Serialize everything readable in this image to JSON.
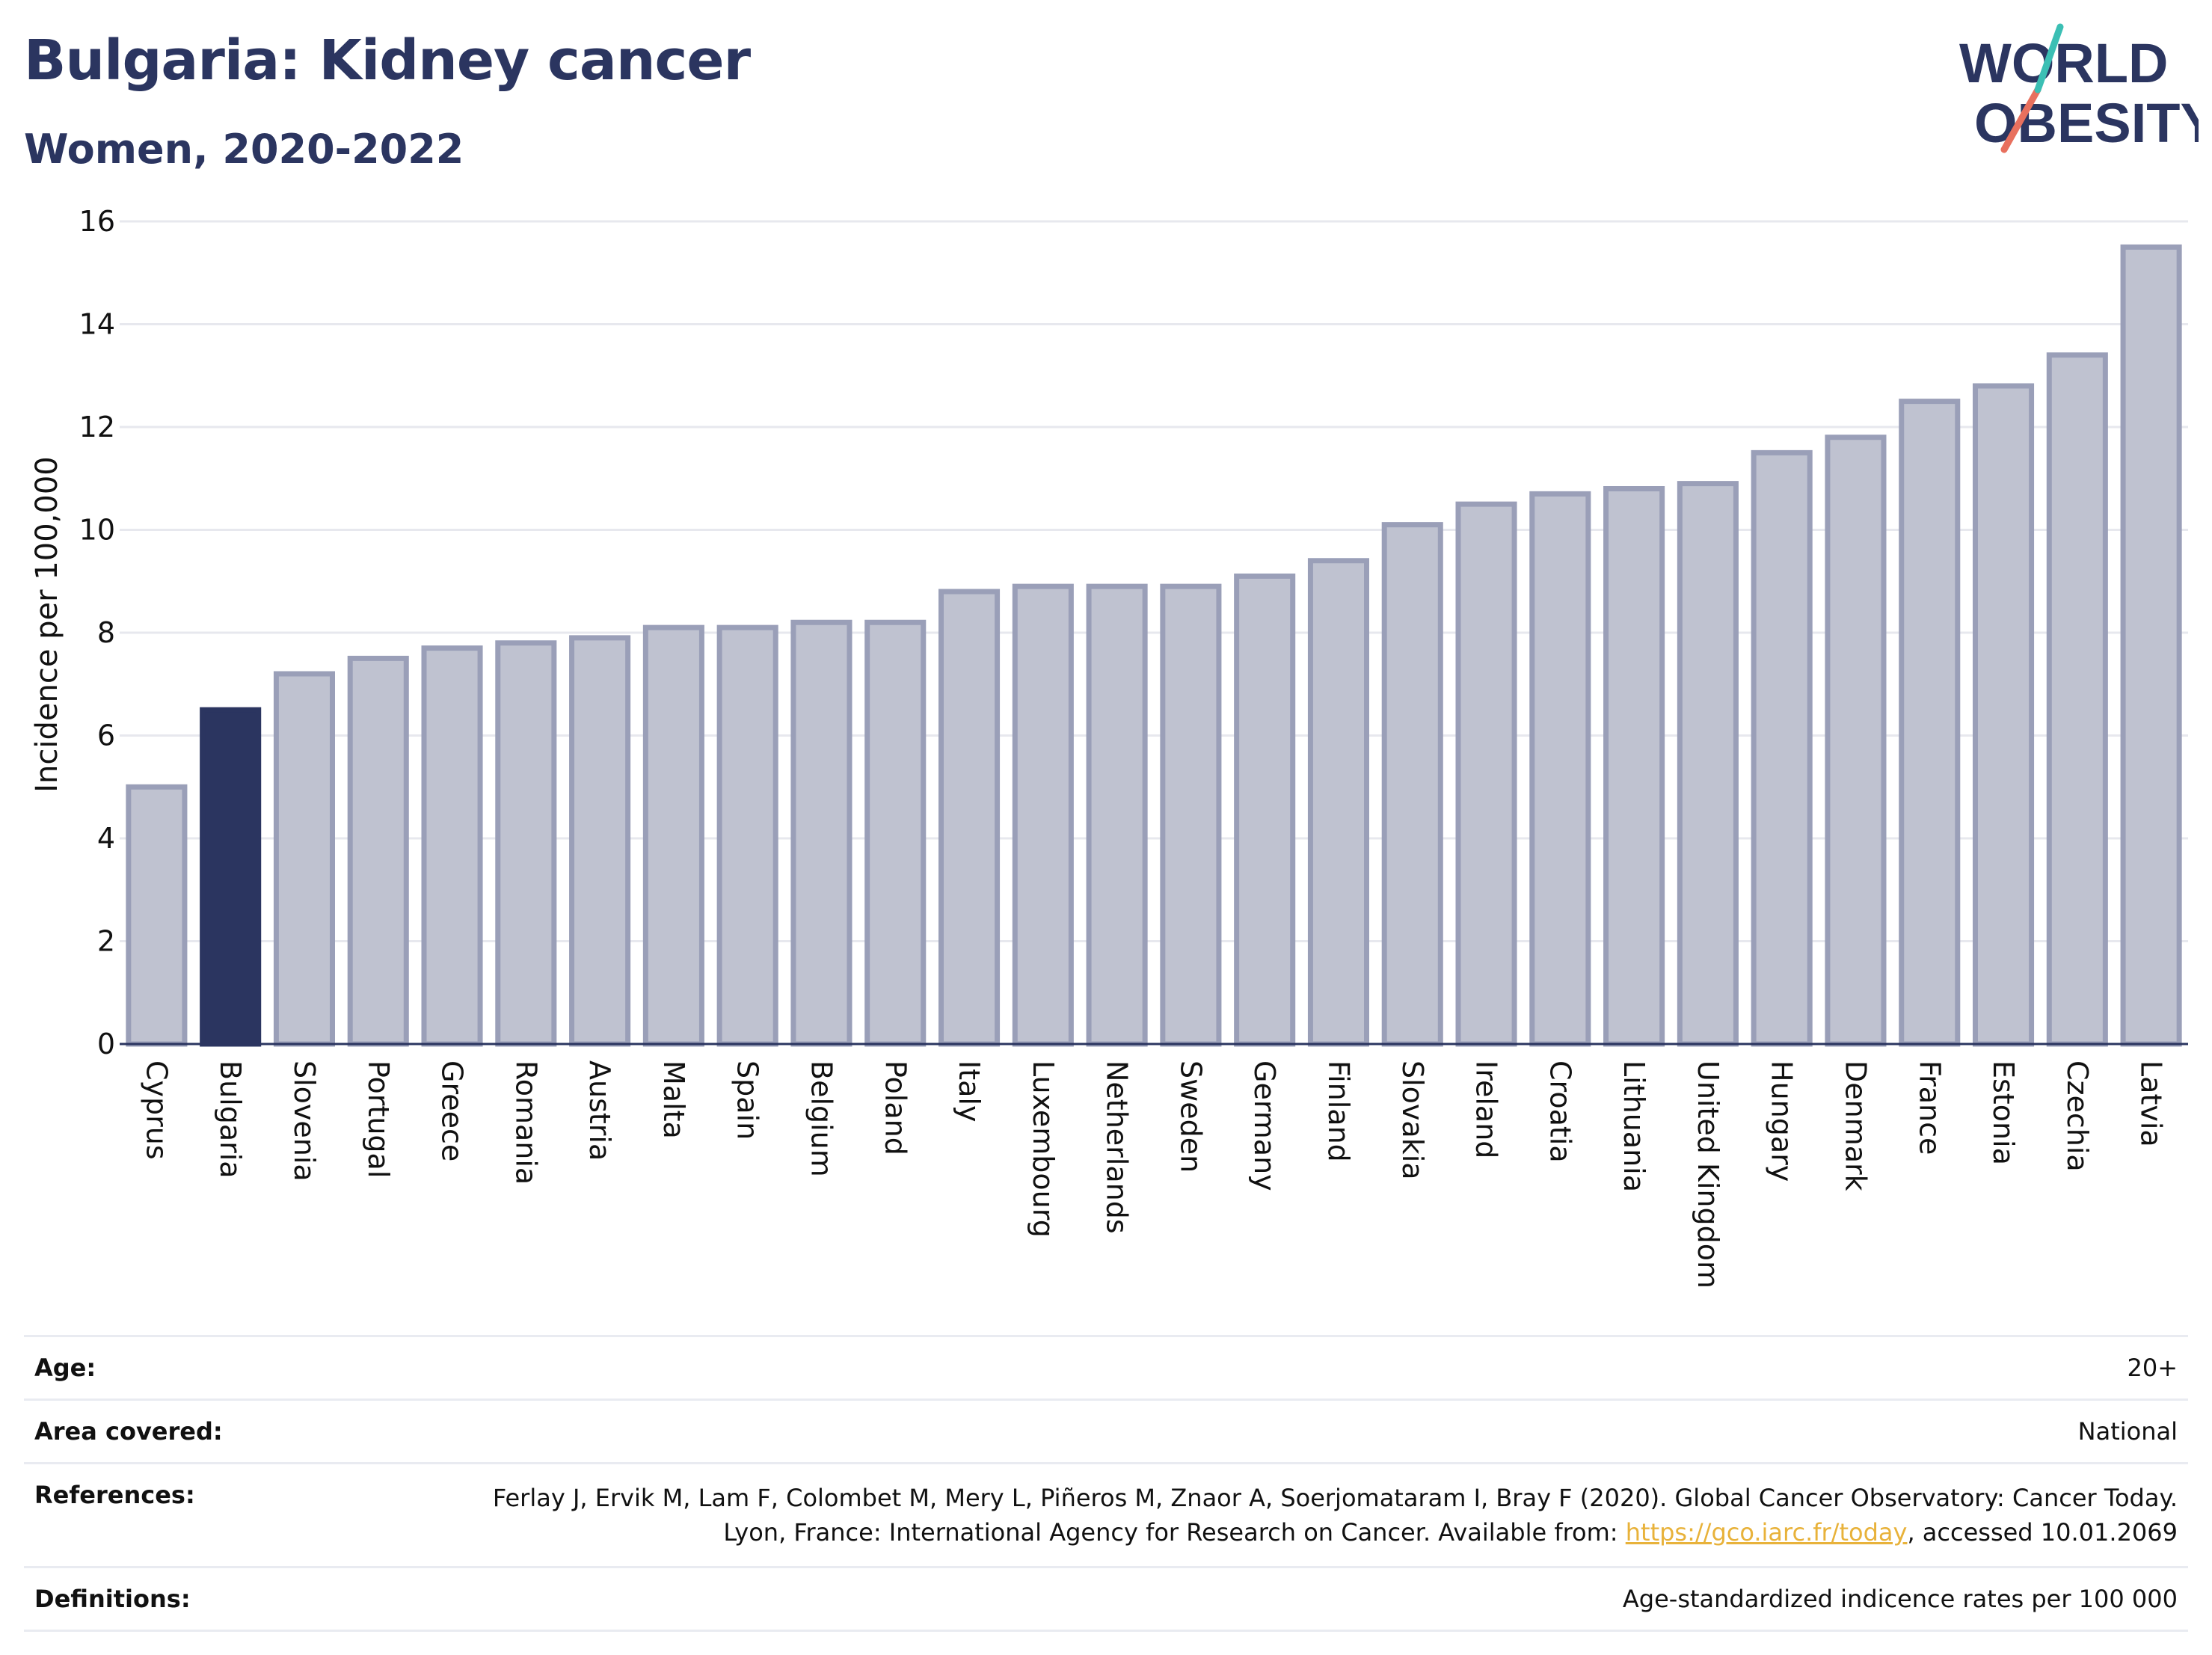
{
  "header": {
    "title": "Bulgaria: Kidney cancer",
    "subtitle": "Women, 2020-2022"
  },
  "logo": {
    "line1": "WORLD",
    "line2": "OBESITY"
  },
  "colors": {
    "highlight": "#2b3560",
    "bar_fill": "#bfc2d0",
    "bar_stroke": "#9a9fb8",
    "accent_teal": "#3bbfb4",
    "accent_red": "#e8705e",
    "link": "#e8b23a"
  },
  "chart_data": {
    "type": "bar",
    "ylabel": "Incidence per 100,000",
    "ylim": [
      0,
      16
    ],
    "yticks": [
      0,
      2,
      4,
      6,
      8,
      10,
      12,
      14,
      16
    ],
    "grid": true,
    "highlight": "Bulgaria",
    "categories": [
      "Cyprus",
      "Bulgaria",
      "Slovenia",
      "Portugal",
      "Greece",
      "Romania",
      "Austria",
      "Malta",
      "Spain",
      "Belgium",
      "Poland",
      "Italy",
      "Luxembourg",
      "Netherlands",
      "Sweden",
      "Germany",
      "Finland",
      "Slovakia",
      "Ireland",
      "Croatia",
      "Lithuania",
      "United Kingdom",
      "Hungary",
      "Denmark",
      "France",
      "Estonia",
      "Czechia",
      "Latvia"
    ],
    "values": [
      5.0,
      6.5,
      7.2,
      7.5,
      7.7,
      7.8,
      7.9,
      8.1,
      8.1,
      8.2,
      8.2,
      8.8,
      8.9,
      8.9,
      8.9,
      9.1,
      9.4,
      10.1,
      10.5,
      10.7,
      10.8,
      10.9,
      11.5,
      11.8,
      12.5,
      12.8,
      13.4,
      15.5
    ]
  },
  "footer": {
    "age_label": "Age:",
    "age_value": "20+",
    "area_label": "Area covered:",
    "area_value": "National",
    "references_label": "References:",
    "references_text": "Ferlay J, Ervik M, Lam F, Colombet M, Mery L, Piñeros M, Znaor A, Soerjomataram I, Bray F (2020). Global Cancer Observatory: Cancer Today. Lyon, France: International Agency for Research on Cancer. Available from: ",
    "references_link": "https://gco.iarc.fr/today",
    "references_suffix": ", accessed 10.01.2069",
    "definitions_label": "Definitions:",
    "definitions_value": "Age-standardized indicence rates per 100 000"
  }
}
